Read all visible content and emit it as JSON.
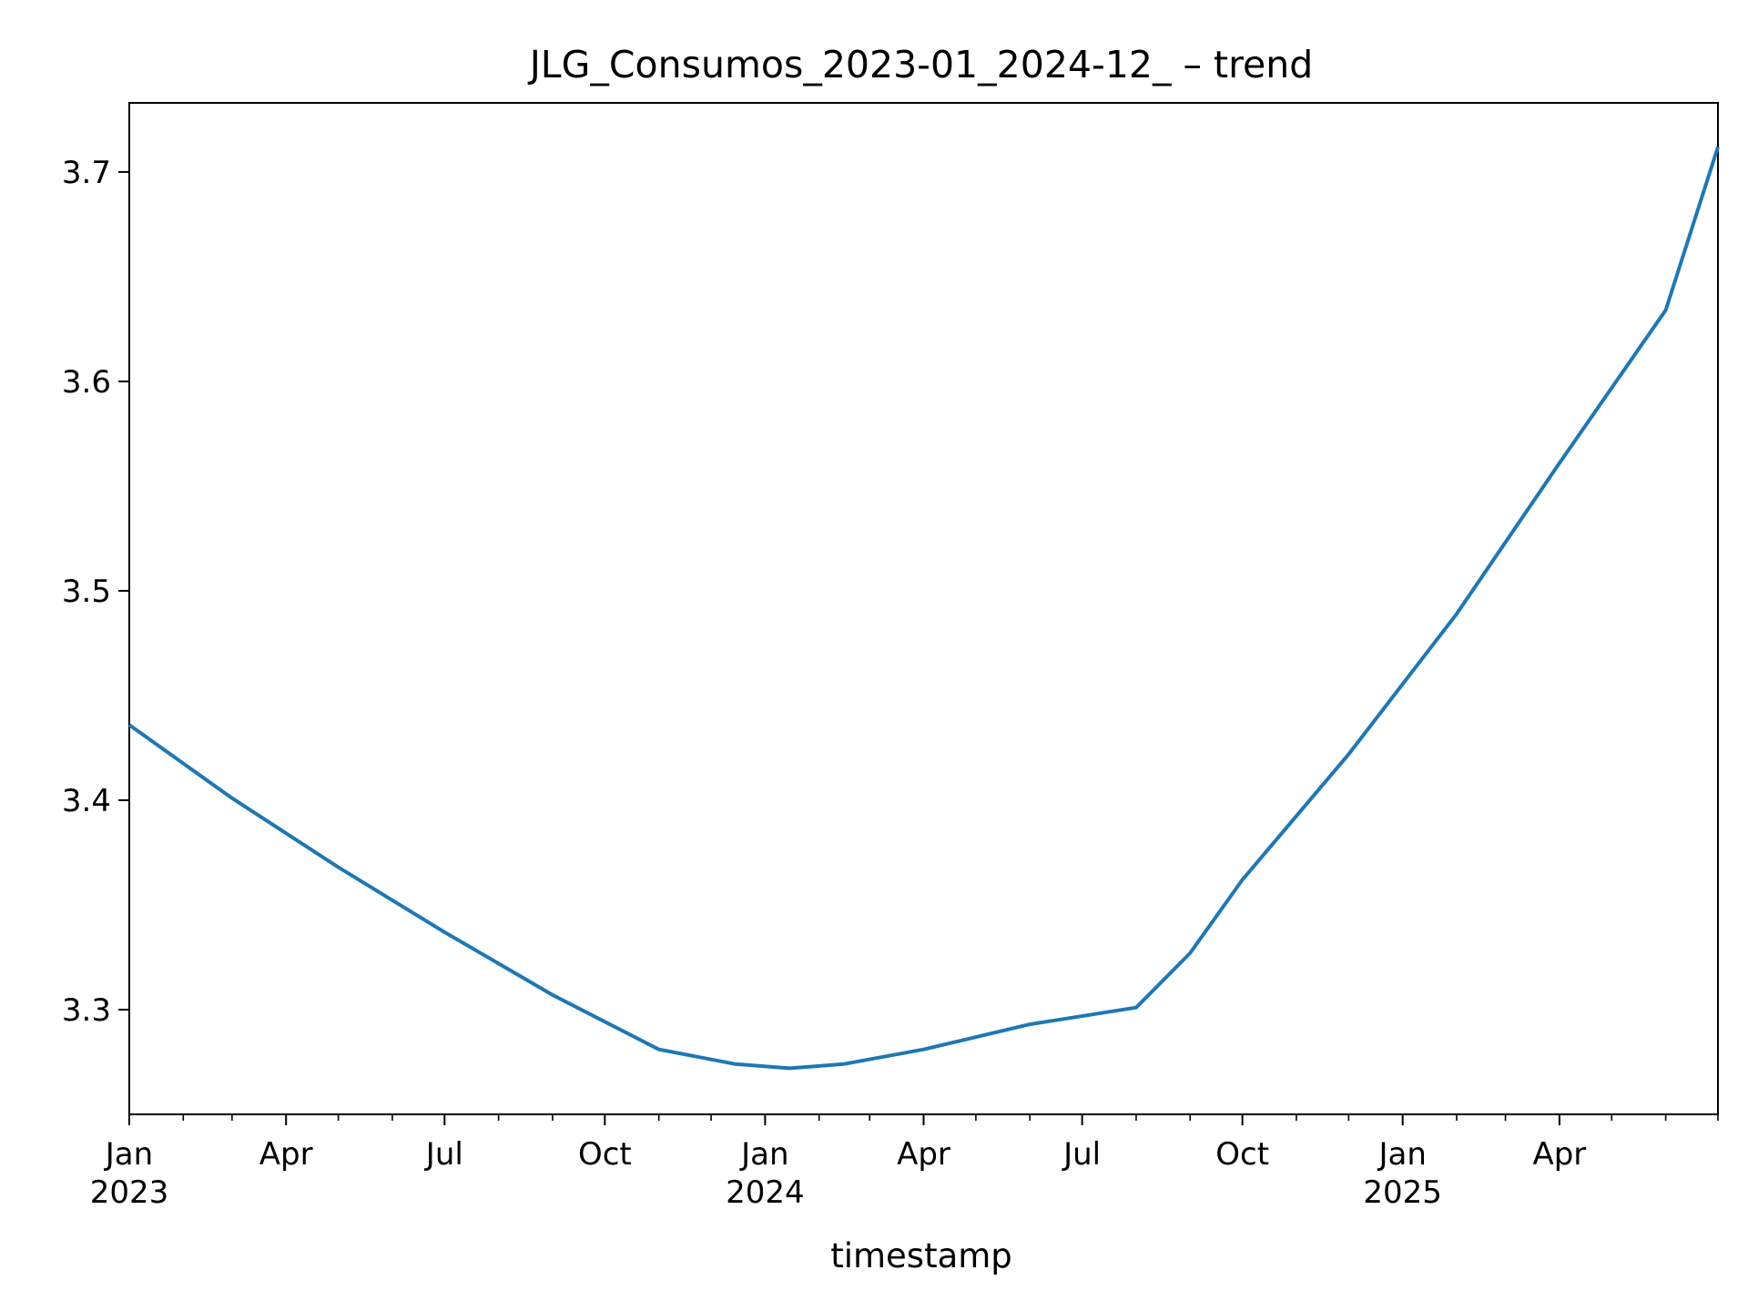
{
  "chart_data": {
    "type": "line",
    "title": "JLG_Consumos_2023-01_2024-12_ – trend",
    "xlabel": "timestamp",
    "ylabel": "",
    "xlim": [
      "2023-01-01",
      "2025-07-01"
    ],
    "ylim": [
      3.25,
      3.733
    ],
    "grid": false,
    "legend": "none",
    "x_ticks": [
      {
        "date": "2023-01-01",
        "label": "Jan",
        "year": "2023"
      },
      {
        "date": "2023-04-01",
        "label": "Apr",
        "year": ""
      },
      {
        "date": "2023-07-01",
        "label": "Jul",
        "year": ""
      },
      {
        "date": "2023-10-01",
        "label": "Oct",
        "year": ""
      },
      {
        "date": "2024-01-01",
        "label": "Jan",
        "year": "2024"
      },
      {
        "date": "2024-04-01",
        "label": "Apr",
        "year": ""
      },
      {
        "date": "2024-07-01",
        "label": "Jul",
        "year": ""
      },
      {
        "date": "2024-10-01",
        "label": "Oct",
        "year": ""
      },
      {
        "date": "2025-01-01",
        "label": "Jan",
        "year": "2025"
      },
      {
        "date": "2025-04-01",
        "label": "Apr",
        "year": ""
      }
    ],
    "minor_ticks": [
      "2023-02-01",
      "2023-03-01",
      "2023-05-01",
      "2023-06-01",
      "2023-08-01",
      "2023-09-01",
      "2023-11-01",
      "2023-12-01",
      "2024-02-01",
      "2024-03-01",
      "2024-05-01",
      "2024-06-01",
      "2024-08-01",
      "2024-09-01",
      "2024-11-01",
      "2024-12-01",
      "2025-02-01",
      "2025-03-01",
      "2025-05-01",
      "2025-06-01",
      "2025-07-01"
    ],
    "y_ticks": [
      {
        "value": 3.3,
        "label": "3.3"
      },
      {
        "value": 3.4,
        "label": "3.4"
      },
      {
        "value": 3.5,
        "label": "3.5"
      },
      {
        "value": 3.6,
        "label": "3.6"
      },
      {
        "value": 3.7,
        "label": "3.7"
      }
    ],
    "series": [
      {
        "color": "#1f77b4",
        "x": [
          "2023-01-01",
          "2023-03-01",
          "2023-05-01",
          "2023-07-01",
          "2023-09-01",
          "2023-11-01",
          "2023-12-15",
          "2024-01-15",
          "2024-02-15",
          "2024-04-01",
          "2024-06-01",
          "2024-08-01",
          "2024-09-01",
          "2024-10-01",
          "2024-12-01",
          "2025-02-01",
          "2025-04-01",
          "2025-06-01",
          "2025-07-01"
        ],
        "values": [
          3.436,
          3.401,
          3.368,
          3.337,
          3.307,
          3.281,
          3.274,
          3.272,
          3.274,
          3.281,
          3.293,
          3.301,
          3.327,
          3.362,
          3.422,
          3.489,
          3.561,
          3.634,
          3.712
        ]
      }
    ]
  }
}
